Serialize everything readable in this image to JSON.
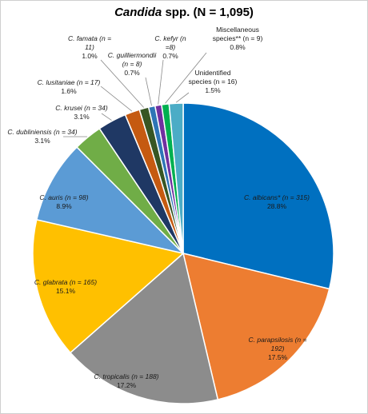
{
  "chart_data": {
    "type": "pie",
    "title_italic": "Candida",
    "title_rest": " spp. (N = 1,095)",
    "colors": [
      "#0070C0",
      "#ED7D31",
      "#8C8C8C",
      "#FFC000",
      "#5B9BD5",
      "#70AD47",
      "#1F3864",
      "#C55A11",
      "#375623",
      "#2E75B6",
      "#7030A0",
      "#00B050",
      "#4BACC6"
    ],
    "slices": [
      {
        "name": "C. albicans*",
        "n": 315,
        "pct": "28.8%",
        "value": 28.8,
        "line1": "C. albicans* (n = 315)",
        "line2": "28.8%",
        "line3": ""
      },
      {
        "name": "C. parapsilosis",
        "n": 192,
        "pct": "17.5%",
        "value": 17.5,
        "line1": "C. parapsilosis (n =",
        "line2": "192)",
        "line3": "17.5%"
      },
      {
        "name": "C. tropicalis",
        "n": 188,
        "pct": "17.2%",
        "value": 17.2,
        "line1": "C. tropicalis (n = 188)",
        "line2": "17.2%",
        "line3": ""
      },
      {
        "name": "C. glabrata",
        "n": 165,
        "pct": "15.1%",
        "value": 15.1,
        "line1": "C. glabrata (n = 165)",
        "line2": "15.1%",
        "line3": ""
      },
      {
        "name": "C. auris",
        "n": 98,
        "pct": "8.9%",
        "value": 8.9,
        "line1": "C. auris (n = 98)",
        "line2": "8.9%",
        "line3": ""
      },
      {
        "name": "C. dubliniensis",
        "n": 34,
        "pct": "3.1%",
        "value": 3.1,
        "line1": "C. dubliniensis (n = 34)",
        "line2": "3.1%",
        "line3": ""
      },
      {
        "name": "C. krusei",
        "n": 34,
        "pct": "3.1%",
        "value": 3.1,
        "line1": "C. krusei (n = 34)",
        "line2": "3.1%",
        "line3": ""
      },
      {
        "name": "C. lusitaniae",
        "n": 17,
        "pct": "1.6%",
        "value": 1.6,
        "line1": "C. lusitaniae (n = 17)",
        "line2": "1.6%",
        "line3": ""
      },
      {
        "name": "C. famata",
        "n": 11,
        "pct": "1.0%",
        "value": 1.0,
        "line1": "C. famata (n =",
        "line2": "11)",
        "line3": "1.0%"
      },
      {
        "name": "C. guilliermondii",
        "n": 8,
        "pct": "0.7%",
        "value": 0.7,
        "line1": "C. guilliermondii",
        "line2": "(n = 8)",
        "line3": "0.7%"
      },
      {
        "name": "C. kefyr",
        "n": 8,
        "pct": "0.7%",
        "value": 0.7,
        "line1": "C. kefyr (n",
        "line2": "=8)",
        "line3": "0.7%"
      },
      {
        "name": "Miscellaneous species**",
        "n": 9,
        "pct": "0.8%",
        "value": 0.8,
        "line1": "Miscellaneous",
        "line2": "species** (n = 9)",
        "line3": "0.8%"
      },
      {
        "name": "Unidentified species",
        "n": 16,
        "pct": "1.5%",
        "value": 1.5,
        "line1": "Unidentified",
        "line2": "species (n = 16)",
        "line3": "1.5%"
      }
    ]
  }
}
